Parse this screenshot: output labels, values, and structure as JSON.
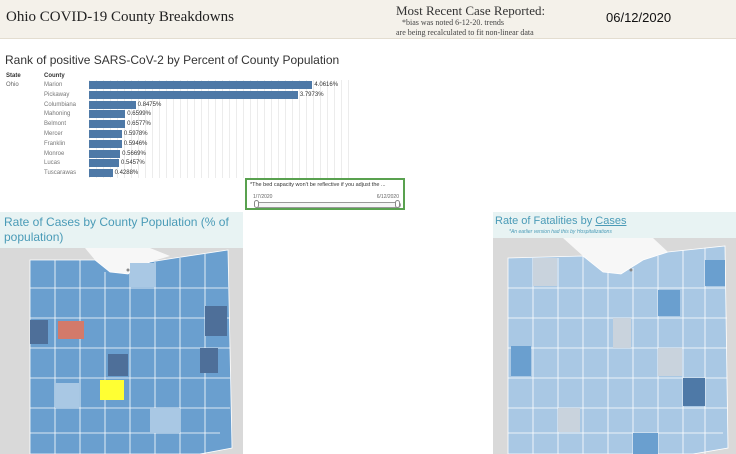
{
  "header": {
    "title": "Ohio COVID-19 County Breakdowns",
    "recent_label": "Most Recent Case Reported:",
    "note_line1": "*bias was noted 6-12-20. trends",
    "note_line2": "are being recalculated to fit non-linear data",
    "date": "06/12/2020"
  },
  "rank": {
    "title": "Rank of positive SARS-CoV-2 by Percent of County Population",
    "state_header": "State",
    "county_header": "County",
    "state_value": "Ohio"
  },
  "chart_data": {
    "type": "bar",
    "orientation": "horizontal",
    "categories": [
      "Marion",
      "Pickaway",
      "Columbiana",
      "Mahoning",
      "Belmont",
      "Mercer",
      "Franklin",
      "Monroe",
      "Lucas",
      "Tuscarawas"
    ],
    "values": [
      4.0616,
      3.7973,
      0.8475,
      0.6599,
      0.6577,
      0.5978,
      0.5946,
      0.5669,
      0.5457,
      0.4288
    ],
    "labels": [
      "4.0616%",
      "3.7973%",
      "0.8475%",
      "0.6599%",
      "0.6577%",
      "0.5978%",
      "0.5946%",
      "0.5669%",
      "0.5457%",
      "0.4288%"
    ],
    "title": "Rank of positive SARS-CoV-2 by Percent of County Population",
    "xlabel": "",
    "ylabel": "County",
    "xlim": [
      0,
      5
    ],
    "grid": true,
    "colors": {
      "bar": "#4e79a7"
    }
  },
  "filter": {
    "title": "*The bed capacity won't be reflective if you adjust the ...",
    "start": "1/7/2020",
    "end": "6/12/2020"
  },
  "maps": {
    "left_title": "Rate of Cases by County Population (% of population)",
    "right_title_prefix": "Rate of Fatalities by ",
    "right_title_link": "Cases",
    "right_subtitle": "*An earlier version had this by Hospitalizations"
  },
  "colors": {
    "accent": "#4a9bb7",
    "panel_bg": "#e8f3f3",
    "filter_border": "#59a14f",
    "map_highlight_yellow": "#ffff33",
    "map_highlight_red": "#d37a6a"
  }
}
